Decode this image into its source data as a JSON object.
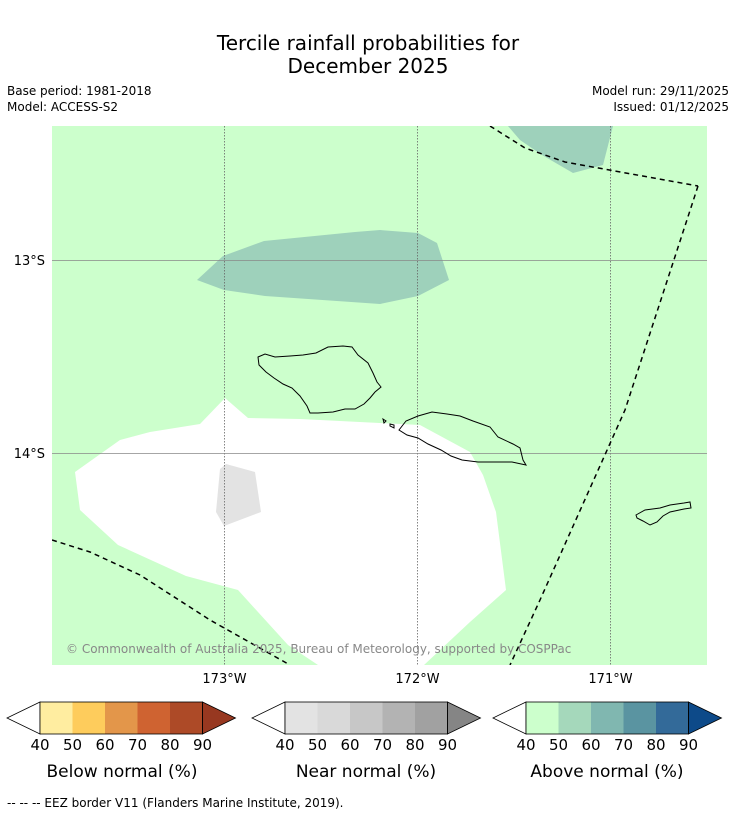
{
  "header": {
    "title_line1": "Tercile rainfall probabilities for",
    "title_line2": "December 2025",
    "base_period": "Base period: 1981-2018",
    "model": "Model: ACCESS-S2",
    "model_run": "Model run: 29/11/2025",
    "issued": "Issued: 01/12/2025"
  },
  "map": {
    "lat_labels": [
      "13°S",
      "14°S"
    ],
    "lon_labels": [
      "173°W",
      "172°W",
      "171°W"
    ],
    "copyright": "© Commonwealth of Australia 2025, Bureau of Meteorology, supported by COSPPac",
    "colors": {
      "above_40_50": "#ccffcc",
      "above_50_60": "#9ed1bb",
      "near_40_50": "#e3e3e3",
      "background": "#ffffff"
    }
  },
  "legends": [
    {
      "label": "Below normal (%)",
      "ticks": [
        "40",
        "50",
        "60",
        "70",
        "80",
        "90"
      ],
      "colors": [
        "#ffeda0",
        "#fecc5c",
        "#e3964a",
        "#cf6331",
        "#ad4a27",
        "#973820"
      ]
    },
    {
      "label": "Near normal (%)",
      "ticks": [
        "40",
        "50",
        "60",
        "70",
        "80",
        "90"
      ],
      "colors": [
        "#e3e3e3",
        "#d9d9d9",
        "#c7c7c7",
        "#b3b3b3",
        "#a1a1a1",
        "#858585"
      ]
    },
    {
      "label": "Above normal (%)",
      "ticks": [
        "40",
        "50",
        "60",
        "70",
        "80",
        "90"
      ],
      "colors": [
        "#ccffcc",
        "#a5d8bb",
        "#80b7b0",
        "#5a94a1",
        "#336a99",
        "#0d4a89"
      ]
    }
  ],
  "footer": {
    "eez_note": "--  --  -- EEZ border V11 (Flanders Marine Institute, 2019)."
  }
}
